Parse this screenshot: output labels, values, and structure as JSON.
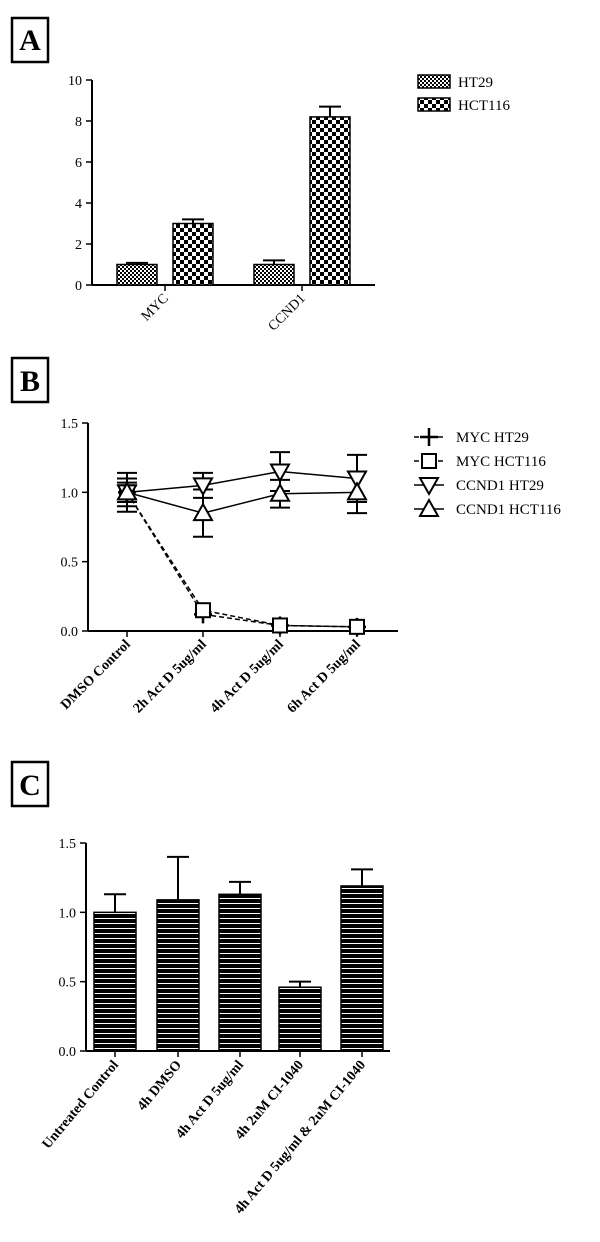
{
  "chart_data": [
    {
      "panel_label": "A",
      "type": "bar",
      "categories": [
        "MYC",
        "CCND1"
      ],
      "series": [
        {
          "name": "HT29",
          "values": [
            1.0,
            1.0
          ],
          "errors": [
            0.08,
            0.2
          ]
        },
        {
          "name": "HCT116",
          "values": [
            3.0,
            8.2
          ],
          "errors": [
            0.2,
            0.5
          ]
        }
      ],
      "ylim": [
        0,
        10
      ],
      "yticks": [
        0,
        2,
        4,
        6,
        8,
        10
      ],
      "legend": "top-right"
    },
    {
      "panel_label": "B",
      "type": "line",
      "categories": [
        "DMSO Control",
        "2h Act D 5ug/ml",
        "4h Act D 5ug/ml",
        "6h Act D 5ug/ml"
      ],
      "series": [
        {
          "name": "MYC HT29",
          "marker": "plus",
          "dashed": true,
          "values": [
            1.0,
            0.12,
            0.04,
            0.03
          ],
          "errors": [
            0.1,
            0.02,
            0.01,
            0.01
          ]
        },
        {
          "name": "MYC HCT116",
          "marker": "square",
          "dashed": true,
          "values": [
            1.0,
            0.15,
            0.04,
            0.03
          ],
          "errors": [
            0.05,
            0.02,
            0.01,
            0.01
          ]
        },
        {
          "name": "CCND1 HT29",
          "marker": "triangle-down",
          "dashed": false,
          "values": [
            1.0,
            1.05,
            1.15,
            1.1
          ],
          "errors": [
            0.14,
            0.09,
            0.14,
            0.17
          ]
        },
        {
          "name": "CCND1 HCT116",
          "marker": "triangle-up",
          "dashed": false,
          "values": [
            1.0,
            0.85,
            0.99,
            1.0
          ],
          "errors": [
            0.07,
            0.17,
            0.1,
            0.15
          ]
        }
      ],
      "ylim": [
        0,
        1.5
      ],
      "yticks": [
        "0.0",
        "0.5",
        "1.0",
        "1.5"
      ],
      "legend": "top-right"
    },
    {
      "panel_label": "C",
      "type": "bar",
      "categories": [
        "Untreated Control",
        "4h DMSO",
        "4h Act D 5ug/ml",
        "4h 2uM CI-1040",
        "4h Act D 5ug/ml & 2uM CI-1040"
      ],
      "series": [
        {
          "values": [
            1.0,
            1.09,
            1.13,
            0.46,
            1.19
          ],
          "errors": [
            0.13,
            0.31,
            0.09,
            0.04,
            0.12
          ]
        }
      ],
      "ylim": [
        0,
        1.5
      ],
      "yticks": [
        "0.0",
        "0.5",
        "1.0",
        "1.5"
      ]
    }
  ]
}
